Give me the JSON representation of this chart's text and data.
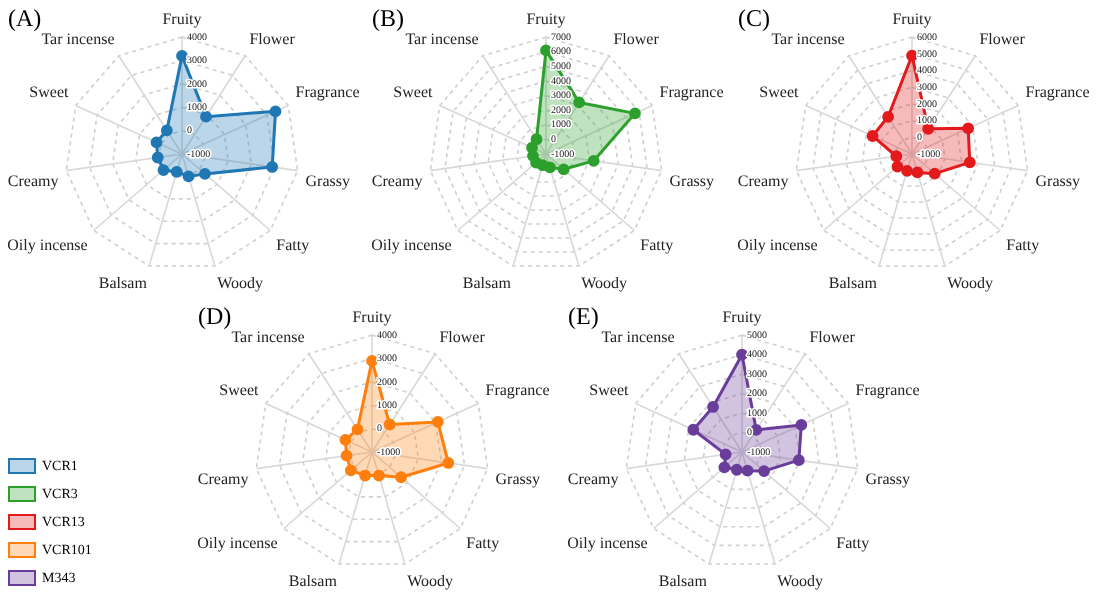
{
  "chart_data": [
    {
      "type": "radar",
      "title": "(A)",
      "categories": [
        "Fruity",
        "Flower",
        "Fragrance",
        "Grassy",
        "Fatty",
        "Woody",
        "Balsam",
        "Oily incense",
        "Creamy",
        "Sweet",
        "Tar incense"
      ],
      "ylim": [
        -1000,
        4000
      ],
      "yticks": [
        -1000,
        0,
        1000,
        2000,
        3000,
        4000
      ],
      "grid": true,
      "legend": "left",
      "marker": "circle",
      "series": [
        {
          "name": "VCR1",
          "color": "#1f77b4",
          "values": [
            3200,
            900,
            3400,
            2900,
            300,
            0,
            -200,
            50,
            50,
            200,
            200
          ]
        }
      ]
    },
    {
      "type": "radar",
      "title": "(B)",
      "categories": [
        "Fruity",
        "Flower",
        "Fragrance",
        "Grassy",
        "Fatty",
        "Woody",
        "Balsam",
        "Oily incense",
        "Creamy",
        "Sweet",
        "Tar incense"
      ],
      "ylim": [
        -1000,
        7000
      ],
      "yticks": [
        -1000,
        0,
        1000,
        2000,
        3000,
        4000,
        5000,
        6000,
        7000
      ],
      "grid": true,
      "legend": "left",
      "marker": "circle",
      "series": [
        {
          "name": "VCR3",
          "color": "#2ca02c",
          "values": [
            6100,
            3200,
            5700,
            2300,
            600,
            -50,
            -200,
            -100,
            -100,
            50,
            200
          ]
        }
      ]
    },
    {
      "type": "radar",
      "title": "(C)",
      "categories": [
        "Fruity",
        "Flower",
        "Fragrance",
        "Grassy",
        "Fatty",
        "Woody",
        "Balsam",
        "Oily incense",
        "Creamy",
        "Sweet",
        "Tar incense"
      ],
      "ylim": [
        -1000,
        6000
      ],
      "yticks": [
        -1000,
        0,
        1000,
        2000,
        3000,
        4000,
        5000,
        6000
      ],
      "grid": true,
      "legend": "left",
      "marker": "circle",
      "series": [
        {
          "name": "VCR13",
          "color": "#e31a1c",
          "values": [
            4900,
            800,
            2700,
            2500,
            800,
            150,
            50,
            150,
            -50,
            1600,
            1650
          ]
        }
      ]
    },
    {
      "type": "radar",
      "title": "(D)",
      "categories": [
        "Fruity",
        "Flower",
        "Fragrance",
        "Grassy",
        "Fatty",
        "Woody",
        "Balsam",
        "Oily incense",
        "Creamy",
        "Sweet",
        "Tar incense"
      ],
      "ylim": [
        -1000,
        4000
      ],
      "yticks": [
        -1000,
        0,
        1000,
        2000,
        3000,
        4000
      ],
      "grid": true,
      "legend": "left",
      "marker": "circle",
      "series": [
        {
          "name": "VCR101",
          "color": "#ff7f0e",
          "values": [
            2900,
            400,
            2100,
            2300,
            650,
            50,
            50,
            200,
            100,
            250,
            150
          ]
        }
      ]
    },
    {
      "type": "radar",
      "title": "(E)",
      "categories": [
        "Fruity",
        "Flower",
        "Fragrance",
        "Grassy",
        "Fatty",
        "Woody",
        "Balsam",
        "Oily incense",
        "Creamy",
        "Sweet",
        "Tar incense"
      ],
      "ylim": [
        -1000,
        5000
      ],
      "yticks": [
        -1000,
        0,
        1000,
        2000,
        3000,
        4000,
        5000
      ],
      "grid": true,
      "legend": "left",
      "marker": "circle",
      "series": [
        {
          "name": "M343",
          "color": "#6a3d9a",
          "values": [
            4000,
            350,
            2350,
            1950,
            500,
            0,
            -50,
            200,
            -150,
            1750,
            1750
          ]
        }
      ]
    }
  ]
}
